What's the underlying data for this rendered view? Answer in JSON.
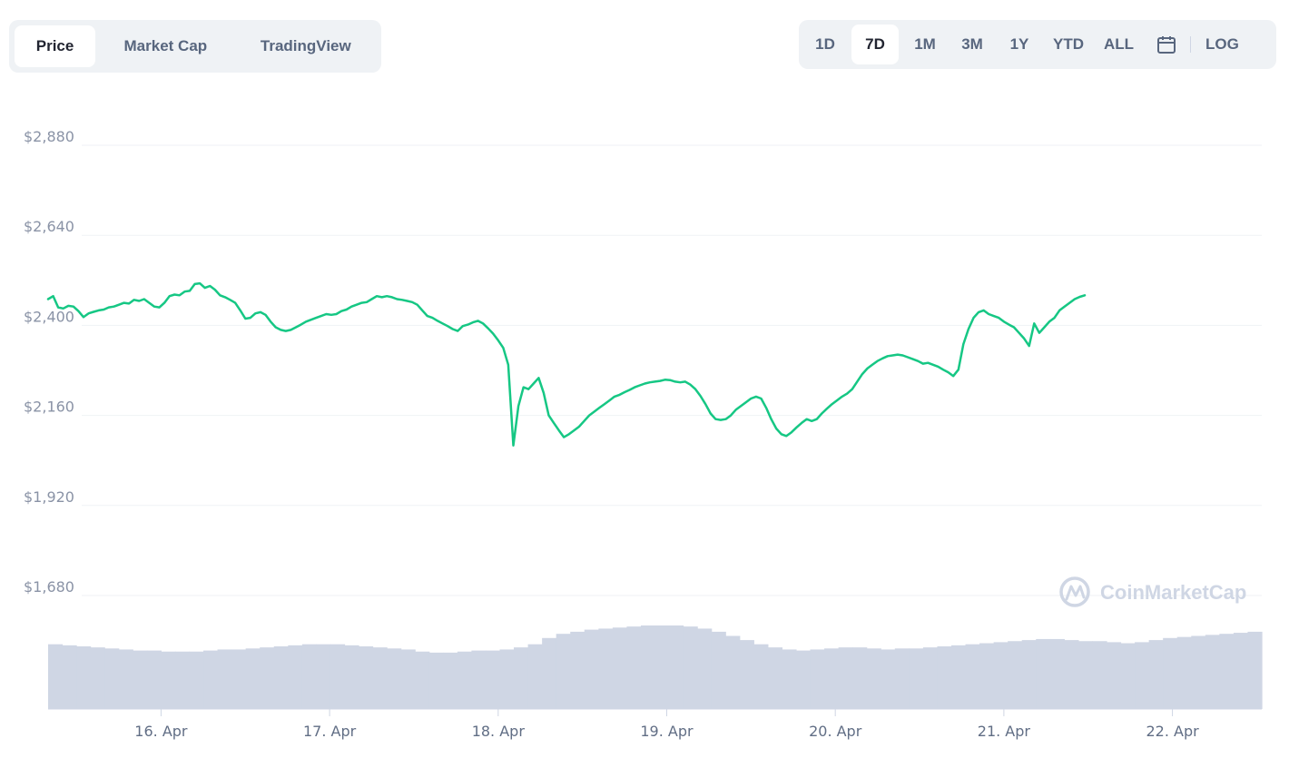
{
  "tabs": [
    {
      "label": "Price",
      "active": true
    },
    {
      "label": "Market Cap",
      "active": false
    },
    {
      "label": "TradingView",
      "active": false
    }
  ],
  "ranges": [
    {
      "label": "1D",
      "active": false
    },
    {
      "label": "7D",
      "active": true
    },
    {
      "label": "1M",
      "active": false
    },
    {
      "label": "3M",
      "active": false
    },
    {
      "label": "1Y",
      "active": false
    },
    {
      "label": "YTD",
      "active": false
    },
    {
      "label": "ALL",
      "active": false
    }
  ],
  "calendar_icon": "calendar-icon",
  "log_label": "LOG",
  "watermark": {
    "text": "CoinMarketCap",
    "icon": "coinmarketcap-logo-icon"
  },
  "colors": {
    "line": "#16c784",
    "volume": "#cfd6e4",
    "grid": "#eff2f5",
    "axis": "#cfd6e4"
  },
  "chart_data": {
    "type": "line",
    "series": [
      {
        "values": [
          [
            0.0,
            2470
          ],
          [
            0.03,
            2478
          ],
          [
            0.06,
            2448
          ],
          [
            0.09,
            2445
          ],
          [
            0.12,
            2452
          ],
          [
            0.15,
            2450
          ],
          [
            0.18,
            2438
          ],
          [
            0.21,
            2422
          ],
          [
            0.24,
            2432
          ],
          [
            0.27,
            2436
          ],
          [
            0.3,
            2440
          ],
          [
            0.33,
            2442
          ],
          [
            0.36,
            2448
          ],
          [
            0.39,
            2450
          ],
          [
            0.42,
            2455
          ],
          [
            0.45,
            2460
          ],
          [
            0.48,
            2458
          ],
          [
            0.51,
            2468
          ],
          [
            0.54,
            2465
          ],
          [
            0.57,
            2470
          ],
          [
            0.6,
            2460
          ],
          [
            0.63,
            2450
          ],
          [
            0.66,
            2448
          ],
          [
            0.69,
            2460
          ],
          [
            0.72,
            2478
          ],
          [
            0.75,
            2482
          ],
          [
            0.78,
            2480
          ],
          [
            0.81,
            2490
          ],
          [
            0.84,
            2492
          ],
          [
            0.87,
            2510
          ],
          [
            0.9,
            2512
          ],
          [
            0.93,
            2500
          ],
          [
            0.96,
            2505
          ],
          [
            0.99,
            2495
          ],
          [
            1.02,
            2480
          ],
          [
            1.05,
            2475
          ],
          [
            1.08,
            2468
          ],
          [
            1.11,
            2460
          ],
          [
            1.14,
            2440
          ],
          [
            1.17,
            2418
          ],
          [
            1.2,
            2420
          ],
          [
            1.23,
            2432
          ],
          [
            1.26,
            2435
          ],
          [
            1.29,
            2428
          ],
          [
            1.32,
            2410
          ],
          [
            1.35,
            2395
          ],
          [
            1.38,
            2388
          ],
          [
            1.41,
            2385
          ],
          [
            1.44,
            2388
          ],
          [
            1.47,
            2395
          ],
          [
            1.5,
            2402
          ],
          [
            1.53,
            2410
          ],
          [
            1.56,
            2415
          ],
          [
            1.59,
            2420
          ],
          [
            1.62,
            2425
          ],
          [
            1.65,
            2430
          ],
          [
            1.68,
            2428
          ],
          [
            1.71,
            2430
          ],
          [
            1.74,
            2438
          ],
          [
            1.77,
            2442
          ],
          [
            1.8,
            2450
          ],
          [
            1.83,
            2455
          ],
          [
            1.86,
            2460
          ],
          [
            1.89,
            2462
          ],
          [
            1.92,
            2470
          ],
          [
            1.95,
            2478
          ],
          [
            1.98,
            2475
          ],
          [
            2.01,
            2478
          ],
          [
            2.04,
            2475
          ],
          [
            2.07,
            2470
          ],
          [
            2.1,
            2468
          ],
          [
            2.13,
            2465
          ],
          [
            2.16,
            2462
          ],
          [
            2.19,
            2455
          ],
          [
            2.22,
            2440
          ],
          [
            2.25,
            2425
          ],
          [
            2.28,
            2420
          ],
          [
            2.31,
            2412
          ],
          [
            2.34,
            2405
          ],
          [
            2.37,
            2398
          ],
          [
            2.4,
            2390
          ],
          [
            2.43,
            2385
          ],
          [
            2.46,
            2398
          ],
          [
            2.49,
            2402
          ],
          [
            2.52,
            2408
          ],
          [
            2.55,
            2412
          ],
          [
            2.58,
            2405
          ],
          [
            2.61,
            2392
          ],
          [
            2.64,
            2378
          ],
          [
            2.67,
            2360
          ],
          [
            2.7,
            2340
          ],
          [
            2.73,
            2295
          ],
          [
            2.76,
            2080
          ],
          [
            2.79,
            2185
          ],
          [
            2.82,
            2235
          ],
          [
            2.85,
            2230
          ],
          [
            2.88,
            2245
          ],
          [
            2.91,
            2260
          ],
          [
            2.94,
            2220
          ],
          [
            2.97,
            2160
          ],
          [
            3.0,
            2140
          ],
          [
            3.03,
            2120
          ],
          [
            3.06,
            2102
          ],
          [
            3.09,
            2110
          ],
          [
            3.12,
            2120
          ],
          [
            3.15,
            2130
          ],
          [
            3.18,
            2145
          ],
          [
            3.21,
            2160
          ],
          [
            3.24,
            2170
          ],
          [
            3.27,
            2180
          ],
          [
            3.3,
            2190
          ],
          [
            3.33,
            2200
          ],
          [
            3.36,
            2210
          ],
          [
            3.39,
            2215
          ],
          [
            3.42,
            2222
          ],
          [
            3.45,
            2228
          ],
          [
            3.48,
            2235
          ],
          [
            3.51,
            2240
          ],
          [
            3.54,
            2245
          ],
          [
            3.57,
            2248
          ],
          [
            3.6,
            2250
          ],
          [
            3.63,
            2252
          ],
          [
            3.66,
            2255
          ],
          [
            3.69,
            2254
          ],
          [
            3.72,
            2250
          ],
          [
            3.75,
            2248
          ],
          [
            3.78,
            2250
          ],
          [
            3.81,
            2242
          ],
          [
            3.84,
            2230
          ],
          [
            3.87,
            2212
          ],
          [
            3.9,
            2190
          ],
          [
            3.93,
            2165
          ],
          [
            3.96,
            2150
          ],
          [
            3.99,
            2148
          ],
          [
            4.02,
            2150
          ],
          [
            4.05,
            2160
          ],
          [
            4.08,
            2175
          ],
          [
            4.11,
            2185
          ],
          [
            4.14,
            2195
          ],
          [
            4.17,
            2205
          ],
          [
            4.2,
            2210
          ],
          [
            4.23,
            2205
          ],
          [
            4.26,
            2180
          ],
          [
            4.29,
            2150
          ],
          [
            4.32,
            2125
          ],
          [
            4.35,
            2110
          ],
          [
            4.38,
            2105
          ],
          [
            4.41,
            2115
          ],
          [
            4.44,
            2128
          ],
          [
            4.47,
            2140
          ],
          [
            4.5,
            2150
          ],
          [
            4.53,
            2145
          ],
          [
            4.56,
            2150
          ],
          [
            4.59,
            2165
          ],
          [
            4.62,
            2178
          ],
          [
            4.65,
            2190
          ],
          [
            4.68,
            2200
          ],
          [
            4.71,
            2210
          ],
          [
            4.74,
            2218
          ],
          [
            4.77,
            2230
          ],
          [
            4.8,
            2250
          ],
          [
            4.83,
            2270
          ],
          [
            4.86,
            2285
          ],
          [
            4.89,
            2295
          ],
          [
            4.92,
            2305
          ],
          [
            4.95,
            2312
          ],
          [
            4.98,
            2318
          ],
          [
            5.01,
            2320
          ],
          [
            5.04,
            2322
          ],
          [
            5.07,
            2320
          ],
          [
            5.1,
            2315
          ],
          [
            5.13,
            2310
          ],
          [
            5.16,
            2305
          ],
          [
            5.19,
            2298
          ],
          [
            5.22,
            2300
          ],
          [
            5.25,
            2295
          ],
          [
            5.28,
            2290
          ],
          [
            5.31,
            2282
          ],
          [
            5.34,
            2275
          ],
          [
            5.37,
            2265
          ],
          [
            5.4,
            2282
          ],
          [
            5.43,
            2350
          ],
          [
            5.46,
            2390
          ],
          [
            5.49,
            2420
          ],
          [
            5.52,
            2435
          ],
          [
            5.55,
            2440
          ],
          [
            5.58,
            2430
          ],
          [
            5.61,
            2425
          ],
          [
            5.64,
            2420
          ],
          [
            5.67,
            2410
          ],
          [
            5.7,
            2402
          ],
          [
            5.73,
            2395
          ],
          [
            5.76,
            2380
          ],
          [
            5.79,
            2365
          ],
          [
            5.82,
            2345
          ],
          [
            5.85,
            2405
          ],
          [
            5.88,
            2380
          ],
          [
            5.91,
            2395
          ],
          [
            5.94,
            2410
          ],
          [
            5.97,
            2420
          ],
          [
            6.0,
            2440
          ],
          [
            6.03,
            2450
          ],
          [
            6.06,
            2460
          ],
          [
            6.09,
            2470
          ],
          [
            6.12,
            2476
          ],
          [
            6.15,
            2480
          ]
        ]
      }
    ],
    "volume": [
      0.62,
      0.61,
      0.6,
      0.59,
      0.58,
      0.57,
      0.56,
      0.56,
      0.55,
      0.55,
      0.55,
      0.56,
      0.57,
      0.57,
      0.58,
      0.59,
      0.6,
      0.61,
      0.62,
      0.62,
      0.62,
      0.61,
      0.6,
      0.59,
      0.58,
      0.57,
      0.55,
      0.54,
      0.54,
      0.55,
      0.56,
      0.56,
      0.57,
      0.59,
      0.62,
      0.68,
      0.72,
      0.74,
      0.76,
      0.77,
      0.78,
      0.79,
      0.8,
      0.8,
      0.8,
      0.79,
      0.77,
      0.74,
      0.7,
      0.66,
      0.62,
      0.59,
      0.57,
      0.56,
      0.57,
      0.58,
      0.59,
      0.59,
      0.58,
      0.57,
      0.58,
      0.58,
      0.59,
      0.6,
      0.61,
      0.62,
      0.63,
      0.64,
      0.65,
      0.66,
      0.67,
      0.67,
      0.66,
      0.65,
      0.65,
      0.64,
      0.63,
      0.64,
      0.66,
      0.68,
      0.69,
      0.7,
      0.71,
      0.72,
      0.73,
      0.74
    ],
    "x_tick_labels": [
      "16. Apr",
      "17. Apr",
      "18. Apr",
      "19. Apr",
      "20. Apr",
      "21. Apr",
      "22. Apr"
    ],
    "x_tick_values": [
      0.67,
      1.67,
      2.67,
      3.67,
      4.67,
      5.67,
      6.67
    ],
    "xlim": [
      0,
      7.2
    ],
    "y_ticks": [
      1680,
      1920,
      2160,
      2400,
      2640,
      2880
    ],
    "y_tick_labels": [
      "$1,680",
      "$1,920",
      "$2,160",
      "$2,400",
      "$2,640",
      "$2,880"
    ],
    "ylim": [
      1680,
      2880
    ],
    "grid": true,
    "title": "",
    "xlabel": "",
    "ylabel": ""
  }
}
